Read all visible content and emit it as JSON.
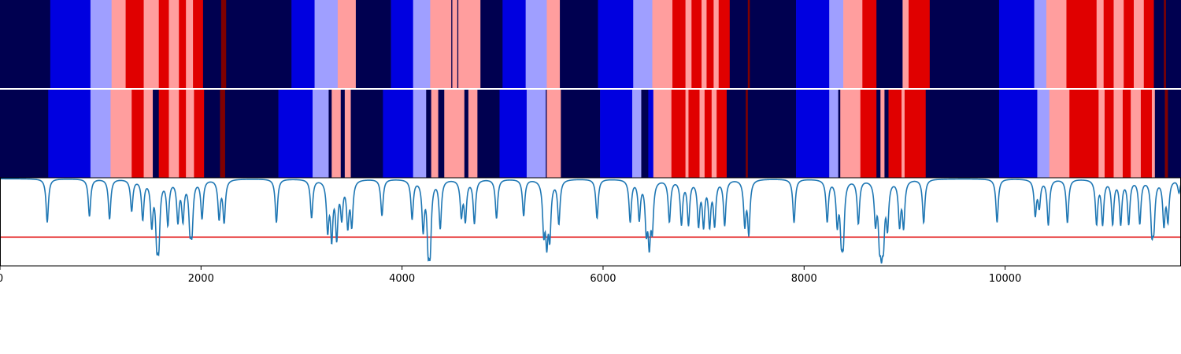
{
  "chart_data": [
    {
      "type": "heatmap",
      "title": "",
      "xlabel": "",
      "ylabel": "",
      "xlim": [
        0,
        11750
      ],
      "colors": {
        "0": "#000050",
        "1": "#0000e0",
        "2": "#9f9fff",
        "3": "#ff9e9e",
        "4": "#e00000",
        "5": "#800000"
      },
      "segments": [
        [
          0,
          500,
          0
        ],
        [
          500,
          900,
          1
        ],
        [
          900,
          1110,
          2
        ],
        [
          1110,
          1250,
          3
        ],
        [
          1250,
          1430,
          4
        ],
        [
          1430,
          1580,
          3
        ],
        [
          1580,
          1680,
          4
        ],
        [
          1680,
          1780,
          3
        ],
        [
          1780,
          1850,
          4
        ],
        [
          1850,
          1920,
          3
        ],
        [
          1920,
          2020,
          4
        ],
        [
          2020,
          2200,
          0
        ],
        [
          2200,
          2250,
          5
        ],
        [
          2250,
          2900,
          0
        ],
        [
          2900,
          3130,
          1
        ],
        [
          3130,
          3360,
          2
        ],
        [
          3360,
          3540,
          3
        ],
        [
          3540,
          3890,
          0
        ],
        [
          3890,
          4110,
          1
        ],
        [
          4110,
          4280,
          2
        ],
        [
          4280,
          4490,
          3
        ],
        [
          4490,
          4500,
          0
        ],
        [
          4500,
          4550,
          3
        ],
        [
          4550,
          4560,
          0
        ],
        [
          4560,
          4780,
          3
        ],
        [
          4780,
          5000,
          0
        ],
        [
          5000,
          5230,
          1
        ],
        [
          5230,
          5440,
          2
        ],
        [
          5440,
          5570,
          3
        ],
        [
          5570,
          5950,
          0
        ],
        [
          5950,
          6300,
          1
        ],
        [
          6300,
          6490,
          2
        ],
        [
          6490,
          6690,
          3
        ],
        [
          6690,
          6820,
          4
        ],
        [
          6820,
          6880,
          3
        ],
        [
          6880,
          6980,
          4
        ],
        [
          6980,
          7030,
          3
        ],
        [
          7030,
          7100,
          4
        ],
        [
          7100,
          7150,
          3
        ],
        [
          7150,
          7260,
          4
        ],
        [
          7260,
          7440,
          0
        ],
        [
          7440,
          7460,
          5
        ],
        [
          7460,
          7920,
          0
        ],
        [
          7920,
          8250,
          1
        ],
        [
          8250,
          8390,
          2
        ],
        [
          8390,
          8580,
          3
        ],
        [
          8580,
          8720,
          4
        ],
        [
          8720,
          8980,
          0
        ],
        [
          8980,
          9040,
          3
        ],
        [
          9040,
          9250,
          4
        ],
        [
          9250,
          9940,
          0
        ],
        [
          9940,
          10290,
          1
        ],
        [
          10290,
          10410,
          2
        ],
        [
          10410,
          10610,
          3
        ],
        [
          10610,
          10910,
          4
        ],
        [
          10910,
          10980,
          3
        ],
        [
          10980,
          11080,
          4
        ],
        [
          11080,
          11180,
          3
        ],
        [
          11180,
          11280,
          4
        ],
        [
          11280,
          11380,
          3
        ],
        [
          11380,
          11480,
          4
        ],
        [
          11480,
          11580,
          0
        ],
        [
          11580,
          11600,
          5
        ],
        [
          11600,
          11750,
          0
        ]
      ]
    },
    {
      "type": "heatmap",
      "title": "",
      "xlabel": "",
      "ylabel": "",
      "xlim": [
        0,
        11750
      ],
      "segments": [
        [
          0,
          480,
          0
        ],
        [
          480,
          900,
          1
        ],
        [
          900,
          1100,
          2
        ],
        [
          1100,
          1310,
          3
        ],
        [
          1310,
          1430,
          4
        ],
        [
          1430,
          1520,
          3
        ],
        [
          1520,
          1580,
          0
        ],
        [
          1580,
          1680,
          4
        ],
        [
          1680,
          1780,
          3
        ],
        [
          1780,
          1850,
          4
        ],
        [
          1850,
          1930,
          3
        ],
        [
          1930,
          2030,
          4
        ],
        [
          2030,
          2190,
          0
        ],
        [
          2190,
          2240,
          5
        ],
        [
          2240,
          2770,
          0
        ],
        [
          2770,
          3110,
          1
        ],
        [
          3110,
          3270,
          2
        ],
        [
          3270,
          3300,
          0
        ],
        [
          3300,
          3390,
          3
        ],
        [
          3390,
          3430,
          0
        ],
        [
          3430,
          3490,
          3
        ],
        [
          3490,
          3810,
          0
        ],
        [
          3810,
          4110,
          1
        ],
        [
          4110,
          4240,
          2
        ],
        [
          4240,
          4290,
          0
        ],
        [
          4290,
          4360,
          3
        ],
        [
          4360,
          4420,
          0
        ],
        [
          4420,
          4620,
          3
        ],
        [
          4620,
          4660,
          0
        ],
        [
          4660,
          4750,
          3
        ],
        [
          4750,
          4970,
          0
        ],
        [
          4970,
          5240,
          1
        ],
        [
          5240,
          5430,
          2
        ],
        [
          5430,
          5440,
          0
        ],
        [
          5440,
          5580,
          3
        ],
        [
          5580,
          5970,
          0
        ],
        [
          5970,
          6290,
          1
        ],
        [
          6290,
          6380,
          2
        ],
        [
          6380,
          6450,
          0
        ],
        [
          6450,
          6500,
          1
        ],
        [
          6500,
          6680,
          3
        ],
        [
          6680,
          6820,
          4
        ],
        [
          6820,
          6850,
          3
        ],
        [
          6850,
          6960,
          4
        ],
        [
          6960,
          7010,
          3
        ],
        [
          7010,
          7080,
          4
        ],
        [
          7080,
          7130,
          3
        ],
        [
          7130,
          7230,
          4
        ],
        [
          7230,
          7420,
          0
        ],
        [
          7420,
          7440,
          5
        ],
        [
          7440,
          7920,
          0
        ],
        [
          7920,
          8250,
          1
        ],
        [
          8250,
          8340,
          2
        ],
        [
          8340,
          8360,
          0
        ],
        [
          8360,
          8560,
          3
        ],
        [
          8560,
          8720,
          4
        ],
        [
          8720,
          8760,
          0
        ],
        [
          8760,
          8800,
          3
        ],
        [
          8800,
          8840,
          0
        ],
        [
          8840,
          8970,
          4
        ],
        [
          8970,
          9000,
          3
        ],
        [
          9000,
          9210,
          4
        ],
        [
          9210,
          9940,
          0
        ],
        [
          9940,
          10320,
          1
        ],
        [
          10320,
          10440,
          2
        ],
        [
          10440,
          10640,
          3
        ],
        [
          10640,
          10930,
          4
        ],
        [
          10930,
          10990,
          3
        ],
        [
          10990,
          11080,
          4
        ],
        [
          11080,
          11170,
          3
        ],
        [
          11170,
          11250,
          4
        ],
        [
          11250,
          11350,
          3
        ],
        [
          11350,
          11460,
          4
        ],
        [
          11460,
          11490,
          3
        ],
        [
          11490,
          11590,
          0
        ],
        [
          11590,
          11620,
          5
        ],
        [
          11620,
          11750,
          0
        ]
      ]
    },
    {
      "type": "line",
      "title": "",
      "xlabel": "",
      "ylabel": "",
      "xlim": [
        0,
        11750
      ],
      "ylim": [
        -1,
        0.01
      ],
      "baseline": 0,
      "threshold": -0.67,
      "threshold_color": "#e00000",
      "line_color": "#1f77b4",
      "dips": [
        [
          470,
          -0.5
        ],
        [
          890,
          -0.43
        ],
        [
          1090,
          -0.46
        ],
        [
          1310,
          -0.36
        ],
        [
          1420,
          -0.45
        ],
        [
          1510,
          -0.5
        ],
        [
          1560,
          -0.6
        ],
        [
          1580,
          -0.62
        ],
        [
          1670,
          -0.5
        ],
        [
          1770,
          -0.46
        ],
        [
          1820,
          -0.44
        ],
        [
          1890,
          -0.47
        ],
        [
          1910,
          -0.5
        ],
        [
          2010,
          -0.44
        ],
        [
          2180,
          -0.44
        ],
        [
          2230,
          -0.48
        ],
        [
          2750,
          -0.5
        ],
        [
          3100,
          -0.44
        ],
        [
          3260,
          -0.55
        ],
        [
          3300,
          -0.63
        ],
        [
          3350,
          -0.63
        ],
        [
          3400,
          -0.4
        ],
        [
          3460,
          -0.5
        ],
        [
          3500,
          -0.5
        ],
        [
          3800,
          -0.42
        ],
        [
          4100,
          -0.45
        ],
        [
          4210,
          -0.55
        ],
        [
          4260,
          -0.65
        ],
        [
          4280,
          -0.67
        ],
        [
          4380,
          -0.55
        ],
        [
          4590,
          -0.4
        ],
        [
          4630,
          -0.45
        ],
        [
          4720,
          -0.5
        ],
        [
          4940,
          -0.45
        ],
        [
          5210,
          -0.42
        ],
        [
          5410,
          -0.55
        ],
        [
          5440,
          -0.63
        ],
        [
          5470,
          -0.6
        ],
        [
          5560,
          -0.5
        ],
        [
          5940,
          -0.45
        ],
        [
          6270,
          -0.48
        ],
        [
          6360,
          -0.44
        ],
        [
          6430,
          -0.52
        ],
        [
          6460,
          -0.65
        ],
        [
          6490,
          -0.5
        ],
        [
          6660,
          -0.48
        ],
        [
          6780,
          -0.5
        ],
        [
          6850,
          -0.5
        ],
        [
          6950,
          -0.5
        ],
        [
          7000,
          -0.5
        ],
        [
          7060,
          -0.5
        ],
        [
          7110,
          -0.5
        ],
        [
          7210,
          -0.52
        ],
        [
          7410,
          -0.5
        ],
        [
          7450,
          -0.6
        ],
        [
          7900,
          -0.5
        ],
        [
          8230,
          -0.48
        ],
        [
          8330,
          -0.48
        ],
        [
          8370,
          -0.55
        ],
        [
          8390,
          -0.6
        ],
        [
          8540,
          -0.5
        ],
        [
          8710,
          -0.45
        ],
        [
          8750,
          -0.55
        ],
        [
          8770,
          -0.55
        ],
        [
          8790,
          -0.55
        ],
        [
          8830,
          -0.5
        ],
        [
          8950,
          -0.5
        ],
        [
          8990,
          -0.52
        ],
        [
          9190,
          -0.5
        ],
        [
          9920,
          -0.5
        ],
        [
          10300,
          -0.4
        ],
        [
          10340,
          -0.3
        ],
        [
          10430,
          -0.52
        ],
        [
          10620,
          -0.5
        ],
        [
          10910,
          -0.5
        ],
        [
          10970,
          -0.5
        ],
        [
          11070,
          -0.5
        ],
        [
          11150,
          -0.5
        ],
        [
          11230,
          -0.5
        ],
        [
          11340,
          -0.5
        ],
        [
          11460,
          -0.52
        ],
        [
          11480,
          -0.45
        ],
        [
          11580,
          -0.5
        ],
        [
          11620,
          -0.45
        ],
        [
          11730,
          -0.15
        ]
      ],
      "x_ticks": [
        0,
        2000,
        4000,
        6000,
        8000,
        10000
      ],
      "x_tick_labels": [
        "0",
        "2000",
        "4000",
        "6000",
        "8000",
        "10000"
      ]
    }
  ]
}
